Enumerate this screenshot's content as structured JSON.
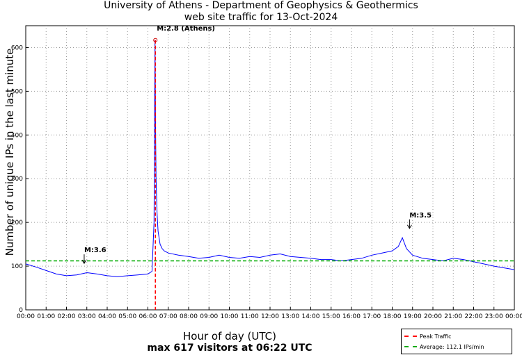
{
  "chart_data": {
    "type": "line",
    "title": "University of Athens - Department of Geophysics & Geothermics",
    "subtitle": "web site traffic for 13-Oct-2024",
    "xlabel": "Hour of day (UTC)",
    "xlabel_sub": "max 617 visitors at 06:22 UTC",
    "ylabel": "Number of unique IPs in the last minute",
    "xlim": [
      0,
      24
    ],
    "ylim": [
      0,
      650
    ],
    "grid": true,
    "x_tick_labels": [
      "00:00",
      "01:00",
      "02:00",
      "03:00",
      "04:00",
      "05:00",
      "06:00",
      "07:00",
      "08:00",
      "09:00",
      "10:00",
      "11:00",
      "12:00",
      "13:00",
      "14:00",
      "15:00",
      "16:00",
      "17:00",
      "18:00",
      "19:00",
      "20:00",
      "21:00",
      "22:00",
      "23:00",
      "00:00"
    ],
    "y_ticks": [
      0,
      100,
      200,
      300,
      400,
      500,
      600
    ],
    "series": [
      {
        "name": "",
        "color": "#0000ff",
        "x": [
          0,
          0.5,
          1,
          1.5,
          2,
          2.5,
          3,
          3.5,
          4,
          4.5,
          5,
          5.5,
          6,
          6.2,
          6.3,
          6.35,
          6.37,
          6.4,
          6.45,
          6.5,
          6.6,
          6.7,
          6.8,
          7,
          7.5,
          8,
          8.5,
          9,
          9.5,
          10,
          10.5,
          11,
          11.5,
          12,
          12.5,
          13,
          13.5,
          14,
          14.5,
          15,
          15.5,
          16,
          16.5,
          17,
          17.5,
          18,
          18.3,
          18.5,
          18.7,
          19,
          19.5,
          20,
          20.5,
          21,
          21.5,
          22,
          22.5,
          23,
          23.5,
          24
        ],
        "y": [
          105,
          98,
          90,
          82,
          78,
          80,
          85,
          82,
          78,
          76,
          78,
          80,
          82,
          88,
          200,
          617,
          450,
          300,
          220,
          180,
          150,
          140,
          135,
          130,
          125,
          122,
          118,
          120,
          125,
          120,
          118,
          122,
          120,
          125,
          128,
          122,
          120,
          118,
          115,
          115,
          112,
          115,
          118,
          125,
          130,
          135,
          145,
          165,
          140,
          125,
          118,
          115,
          112,
          118,
          115,
          110,
          105,
          100,
          96,
          92
        ]
      }
    ],
    "reference_lines": [
      {
        "name": "Peak Traffic",
        "orientation": "vertical",
        "x": 6.3667,
        "color": "#ff0000"
      },
      {
        "name": "Average: 112.1 IPs/min",
        "orientation": "horizontal",
        "y": 112.1,
        "color": "#00aa00"
      }
    ],
    "markers": [
      {
        "label": "M:3.6",
        "x": 2.87,
        "y": 92
      },
      {
        "label": "M:2.8 (Athens)",
        "x": 6.3667,
        "y": 617
      },
      {
        "label": "M:3.5",
        "x": 18.85,
        "y": 172
      }
    ],
    "legend_position": "bottom-right"
  }
}
